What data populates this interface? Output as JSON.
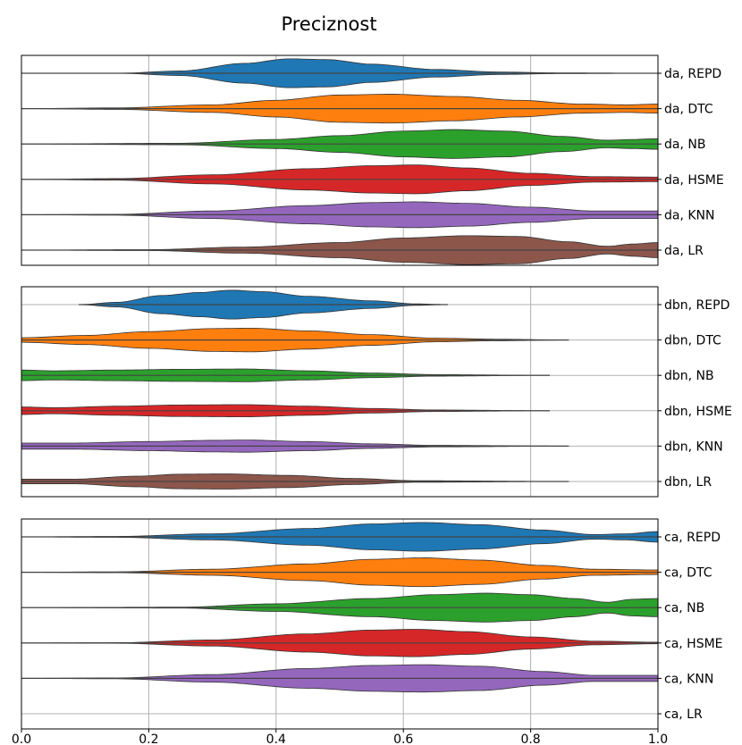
{
  "chart_data": {
    "type": "violin",
    "title": "Preciznost",
    "xlim": [
      0.0,
      1.0
    ],
    "xticks": [
      "0.0",
      "0.2",
      "0.4",
      "0.6",
      "0.8",
      "1.0"
    ],
    "grid": true,
    "orientation": "horizontal",
    "colors": {
      "REPD": "#1f77b4",
      "DTC": "#ff7f0e",
      "NB": "#2ca02c",
      "HSME": "#d62728",
      "KNN": "#9467bd",
      "LR": "#8c564b"
    },
    "panels": [
      {
        "rows": [
          {
            "label": "da, REPD",
            "model": "REPD",
            "range": [
              0.0,
              1.0
            ],
            "profile": [
              [
                0.0,
                0.0
              ],
              [
                0.15,
                0.0
              ],
              [
                0.25,
                0.15
              ],
              [
                0.35,
                0.65
              ],
              [
                0.42,
                0.95
              ],
              [
                0.48,
                0.9
              ],
              [
                0.55,
                0.6
              ],
              [
                0.65,
                0.25
              ],
              [
                0.75,
                0.08
              ],
              [
                0.85,
                0.02
              ],
              [
                1.0,
                0.0
              ]
            ]
          },
          {
            "label": "da, DTC",
            "model": "DTC",
            "range": [
              0.0,
              1.0
            ],
            "profile": [
              [
                0.0,
                0.0
              ],
              [
                0.15,
                0.05
              ],
              [
                0.3,
                0.25
              ],
              [
                0.4,
                0.55
              ],
              [
                0.5,
                0.9
              ],
              [
                0.58,
                0.95
              ],
              [
                0.68,
                0.8
              ],
              [
                0.78,
                0.55
              ],
              [
                0.88,
                0.3
              ],
              [
                0.95,
                0.25
              ],
              [
                1.0,
                0.3
              ]
            ]
          },
          {
            "label": "da, NB",
            "model": "NB",
            "range": [
              0.0,
              1.0
            ],
            "profile": [
              [
                0.0,
                0.0
              ],
              [
                0.25,
                0.05
              ],
              [
                0.4,
                0.3
              ],
              [
                0.5,
                0.55
              ],
              [
                0.6,
                0.85
              ],
              [
                0.68,
                0.95
              ],
              [
                0.76,
                0.85
              ],
              [
                0.85,
                0.5
              ],
              [
                0.92,
                0.25
              ],
              [
                0.96,
                0.3
              ],
              [
                1.0,
                0.35
              ]
            ]
          },
          {
            "label": "da, HSME",
            "model": "HSME",
            "range": [
              0.0,
              1.0
            ],
            "profile": [
              [
                0.0,
                0.0
              ],
              [
                0.15,
                0.05
              ],
              [
                0.3,
                0.3
              ],
              [
                0.45,
                0.7
              ],
              [
                0.55,
                0.9
              ],
              [
                0.62,
                0.95
              ],
              [
                0.7,
                0.75
              ],
              [
                0.8,
                0.4
              ],
              [
                0.9,
                0.18
              ],
              [
                1.0,
                0.15
              ]
            ]
          },
          {
            "label": "da, KNN",
            "model": "KNN",
            "range": [
              0.0,
              1.0
            ],
            "profile": [
              [
                0.0,
                0.0
              ],
              [
                0.15,
                0.03
              ],
              [
                0.3,
                0.25
              ],
              [
                0.45,
                0.6
              ],
              [
                0.55,
                0.8
              ],
              [
                0.62,
                0.85
              ],
              [
                0.7,
                0.75
              ],
              [
                0.8,
                0.5
              ],
              [
                0.9,
                0.25
              ],
              [
                1.0,
                0.25
              ]
            ]
          },
          {
            "label": "da, LR",
            "model": "LR",
            "range": [
              0.0,
              1.0
            ],
            "profile": [
              [
                0.0,
                0.0
              ],
              [
                0.2,
                0.03
              ],
              [
                0.35,
                0.2
              ],
              [
                0.5,
                0.5
              ],
              [
                0.6,
                0.8
              ],
              [
                0.7,
                0.95
              ],
              [
                0.78,
                0.9
              ],
              [
                0.86,
                0.55
              ],
              [
                0.92,
                0.25
              ],
              [
                0.96,
                0.4
              ],
              [
                1.0,
                0.5
              ]
            ]
          }
        ]
      },
      {
        "rows": [
          {
            "label": "dbn, REPD",
            "model": "REPD",
            "range": [
              0.09,
              0.67
            ],
            "profile": [
              [
                0.09,
                0.0
              ],
              [
                0.15,
                0.15
              ],
              [
                0.22,
                0.6
              ],
              [
                0.28,
                0.8
              ],
              [
                0.33,
                0.95
              ],
              [
                0.38,
                0.85
              ],
              [
                0.45,
                0.55
              ],
              [
                0.55,
                0.25
              ],
              [
                0.62,
                0.05
              ],
              [
                0.67,
                0.0
              ]
            ]
          },
          {
            "label": "dbn, DTC",
            "model": "DTC",
            "range": [
              0.0,
              0.86
            ],
            "profile": [
              [
                0.0,
                0.15
              ],
              [
                0.1,
                0.3
              ],
              [
                0.2,
                0.55
              ],
              [
                0.3,
                0.75
              ],
              [
                0.36,
                0.78
              ],
              [
                0.45,
                0.6
              ],
              [
                0.55,
                0.35
              ],
              [
                0.65,
                0.12
              ],
              [
                0.75,
                0.05
              ],
              [
                0.86,
                0.0
              ]
            ]
          },
          {
            "label": "dbn, NB",
            "model": "NB",
            "range": [
              0.0,
              0.83
            ],
            "profile": [
              [
                0.0,
                0.35
              ],
              [
                0.05,
                0.3
              ],
              [
                0.15,
                0.35
              ],
              [
                0.25,
                0.4
              ],
              [
                0.35,
                0.42
              ],
              [
                0.45,
                0.3
              ],
              [
                0.55,
                0.15
              ],
              [
                0.65,
                0.05
              ],
              [
                0.83,
                0.0
              ]
            ]
          },
          {
            "label": "dbn, HSME",
            "model": "HSME",
            "range": [
              0.0,
              0.83
            ],
            "profile": [
              [
                0.0,
                0.25
              ],
              [
                0.05,
                0.2
              ],
              [
                0.15,
                0.3
              ],
              [
                0.25,
                0.38
              ],
              [
                0.35,
                0.4
              ],
              [
                0.45,
                0.3
              ],
              [
                0.55,
                0.15
              ],
              [
                0.65,
                0.05
              ],
              [
                0.83,
                0.0
              ]
            ]
          },
          {
            "label": "dbn, KNN",
            "model": "KNN",
            "range": [
              0.0,
              0.86
            ],
            "profile": [
              [
                0.0,
                0.2
              ],
              [
                0.08,
                0.2
              ],
              [
                0.2,
                0.3
              ],
              [
                0.3,
                0.38
              ],
              [
                0.35,
                0.4
              ],
              [
                0.45,
                0.3
              ],
              [
                0.55,
                0.15
              ],
              [
                0.65,
                0.05
              ],
              [
                0.86,
                0.0
              ]
            ]
          },
          {
            "label": "dbn, LR",
            "model": "LR",
            "range": [
              0.0,
              0.86
            ],
            "profile": [
              [
                0.0,
                0.15
              ],
              [
                0.08,
                0.15
              ],
              [
                0.18,
                0.35
              ],
              [
                0.25,
                0.48
              ],
              [
                0.32,
                0.5
              ],
              [
                0.42,
                0.4
              ],
              [
                0.52,
                0.2
              ],
              [
                0.62,
                0.05
              ],
              [
                0.86,
                0.0
              ]
            ]
          }
        ]
      },
      {
        "rows": [
          {
            "label": "ca, REPD",
            "model": "REPD",
            "range": [
              0.0,
              1.0
            ],
            "profile": [
              [
                0.0,
                0.0
              ],
              [
                0.15,
                0.03
              ],
              [
                0.3,
                0.2
              ],
              [
                0.45,
                0.55
              ],
              [
                0.55,
                0.85
              ],
              [
                0.63,
                0.95
              ],
              [
                0.72,
                0.8
              ],
              [
                0.82,
                0.45
              ],
              [
                0.9,
                0.15
              ],
              [
                0.95,
                0.2
              ],
              [
                1.0,
                0.35
              ]
            ]
          },
          {
            "label": "ca, DTC",
            "model": "DTC",
            "range": [
              0.0,
              1.0
            ],
            "profile": [
              [
                0.0,
                0.0
              ],
              [
                0.15,
                0.03
              ],
              [
                0.3,
                0.2
              ],
              [
                0.45,
                0.55
              ],
              [
                0.55,
                0.85
              ],
              [
                0.63,
                0.95
              ],
              [
                0.72,
                0.8
              ],
              [
                0.82,
                0.45
              ],
              [
                0.9,
                0.2
              ],
              [
                1.0,
                0.15
              ]
            ]
          },
          {
            "label": "ca, NB",
            "model": "NB",
            "range": [
              0.0,
              1.0
            ],
            "profile": [
              [
                0.0,
                0.0
              ],
              [
                0.25,
                0.03
              ],
              [
                0.4,
                0.25
              ],
              [
                0.55,
                0.6
              ],
              [
                0.65,
                0.85
              ],
              [
                0.73,
                0.95
              ],
              [
                0.8,
                0.85
              ],
              [
                0.87,
                0.6
              ],
              [
                0.92,
                0.35
              ],
              [
                0.96,
                0.55
              ],
              [
                1.0,
                0.6
              ]
            ]
          },
          {
            "label": "ca, HSME",
            "model": "HSME",
            "range": [
              0.0,
              1.0
            ],
            "profile": [
              [
                0.0,
                0.0
              ],
              [
                0.15,
                0.02
              ],
              [
                0.3,
                0.2
              ],
              [
                0.45,
                0.6
              ],
              [
                0.55,
                0.85
              ],
              [
                0.62,
                0.9
              ],
              [
                0.7,
                0.75
              ],
              [
                0.8,
                0.4
              ],
              [
                0.9,
                0.12
              ],
              [
                1.0,
                0.05
              ]
            ]
          },
          {
            "label": "ca, KNN",
            "model": "KNN",
            "range": [
              0.0,
              1.0
            ],
            "profile": [
              [
                0.0,
                0.0
              ],
              [
                0.15,
                0.03
              ],
              [
                0.3,
                0.25
              ],
              [
                0.45,
                0.65
              ],
              [
                0.55,
                0.85
              ],
              [
                0.63,
                0.9
              ],
              [
                0.72,
                0.8
              ],
              [
                0.82,
                0.45
              ],
              [
                0.9,
                0.2
              ],
              [
                1.0,
                0.2
              ]
            ]
          },
          {
            "label": "ca, LR",
            "model": "LR",
            "range": [
              0.0,
              1.0
            ],
            "profile": []
          }
        ]
      }
    ]
  }
}
